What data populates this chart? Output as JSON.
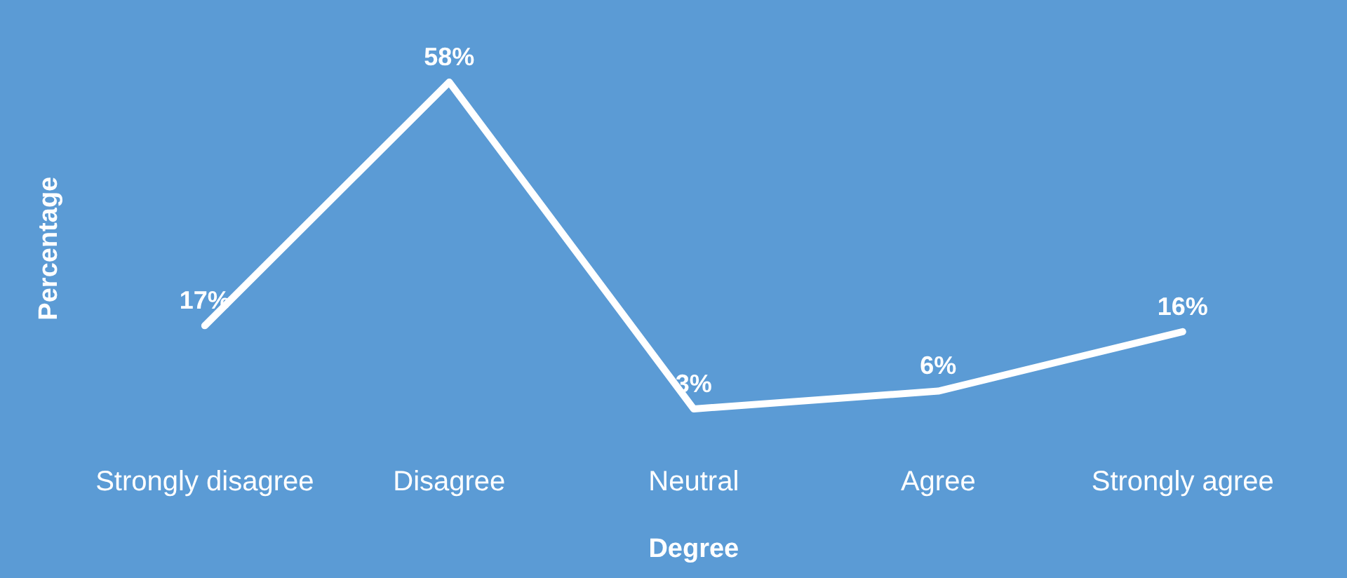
{
  "chart_data": {
    "type": "line",
    "xlabel": "Degree",
    "ylabel": "Percentage",
    "categories": [
      "Strongly disagree",
      "Disagree",
      "Neutral",
      "Agree",
      "Strongly agree"
    ],
    "series": [
      {
        "color": "#ffffff",
        "values": [
          17,
          58,
          3,
          6,
          16
        ],
        "value_labels": [
          "17%",
          "58%",
          "3%",
          "6%",
          "16%"
        ]
      }
    ],
    "marker": "none",
    "legend": false,
    "grid": false,
    "tick_labels": "x"
  }
}
